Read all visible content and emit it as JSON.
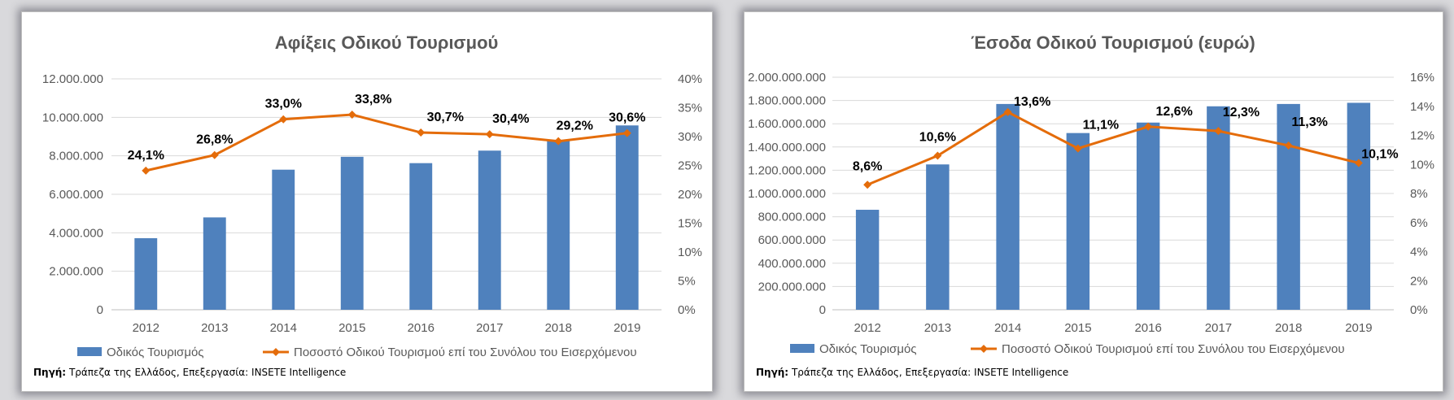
{
  "chart_data": [
    {
      "type": "bar+line",
      "title": "Αφίξεις Οδικού Τουρισμού",
      "categories": [
        "2012",
        "2013",
        "2014",
        "2015",
        "2016",
        "2017",
        "2018",
        "2019"
      ],
      "series": [
        {
          "name": "Οδικός Τουρισμός",
          "type": "bar",
          "axis": "left",
          "color": "#4f81bd",
          "values": [
            3720000,
            4800000,
            7280000,
            7950000,
            7620000,
            8270000,
            8830000,
            9580000
          ]
        },
        {
          "name": "Ποσοστό Οδικού Τουρισμού επί του Συνόλου του Εισερχόμενου",
          "type": "line",
          "axis": "right",
          "color": "#e46c0a",
          "values": [
            24.1,
            26.8,
            33.0,
            33.8,
            30.7,
            30.4,
            29.2,
            30.6
          ],
          "labels": [
            "24,1%",
            "26,8%",
            "33,0%",
            "33,8%",
            "30,7%",
            "30,4%",
            "29,2%",
            "30,6%"
          ]
        }
      ],
      "ylim_left": [
        0,
        12000000
      ],
      "ylim_right": [
        0,
        40
      ],
      "left_ticks": [
        "0",
        "2.000.000",
        "4.000.000",
        "6.000.000",
        "8.000.000",
        "10.000.000",
        "12.000.000"
      ],
      "right_ticks": [
        "0%",
        "5%",
        "10%",
        "15%",
        "20%",
        "25%",
        "30%",
        "35%",
        "40%"
      ],
      "gridlines": true,
      "legend_position": "bottom",
      "source_label": "Πηγή:",
      "source_text": "Τράπεζα της Ελλάδος, Επεξεργασία: INSETE Intelligence"
    },
    {
      "type": "bar+line",
      "title": "Έσοδα Οδικού Τουρισμού (ευρώ)",
      "categories": [
        "2012",
        "2013",
        "2014",
        "2015",
        "2016",
        "2017",
        "2018",
        "2019"
      ],
      "series": [
        {
          "name": "Οδικός Τουρισμός",
          "type": "bar",
          "axis": "left",
          "color": "#4f81bd",
          "values": [
            860000000,
            1250000000,
            1770000000,
            1520000000,
            1610000000,
            1750000000,
            1770000000,
            1780000000
          ]
        },
        {
          "name": "Ποσοστό Οδικού Τουρισμού επί του Συνόλου του Εισερχόμενου",
          "type": "line",
          "axis": "right",
          "color": "#e46c0a",
          "values": [
            8.6,
            10.6,
            13.6,
            11.1,
            12.6,
            12.3,
            11.3,
            10.1
          ],
          "labels": [
            "8,6%",
            "10,6%",
            "13,6%",
            "11,1%",
            "12,6%",
            "12,3%",
            "11,3%",
            "10,1%"
          ]
        }
      ],
      "ylim_left": [
        0,
        2000000000
      ],
      "ylim_right": [
        0,
        16
      ],
      "left_ticks": [
        "0",
        "200.000.000",
        "400.000.000",
        "600.000.000",
        "800.000.000",
        "1.000.000.000",
        "1.200.000.000",
        "1.400.000.000",
        "1.600.000.000",
        "1.800.000.000",
        "2.000.000.000"
      ],
      "right_ticks": [
        "0%",
        "2%",
        "4%",
        "6%",
        "8%",
        "10%",
        "12%",
        "14%",
        "16%"
      ],
      "gridlines": true,
      "legend_position": "bottom",
      "source_label": "Πηγή:",
      "source_text": "Τράπεζα της Ελλάδος, Επεξεργασία: INSETE Intelligence"
    }
  ]
}
